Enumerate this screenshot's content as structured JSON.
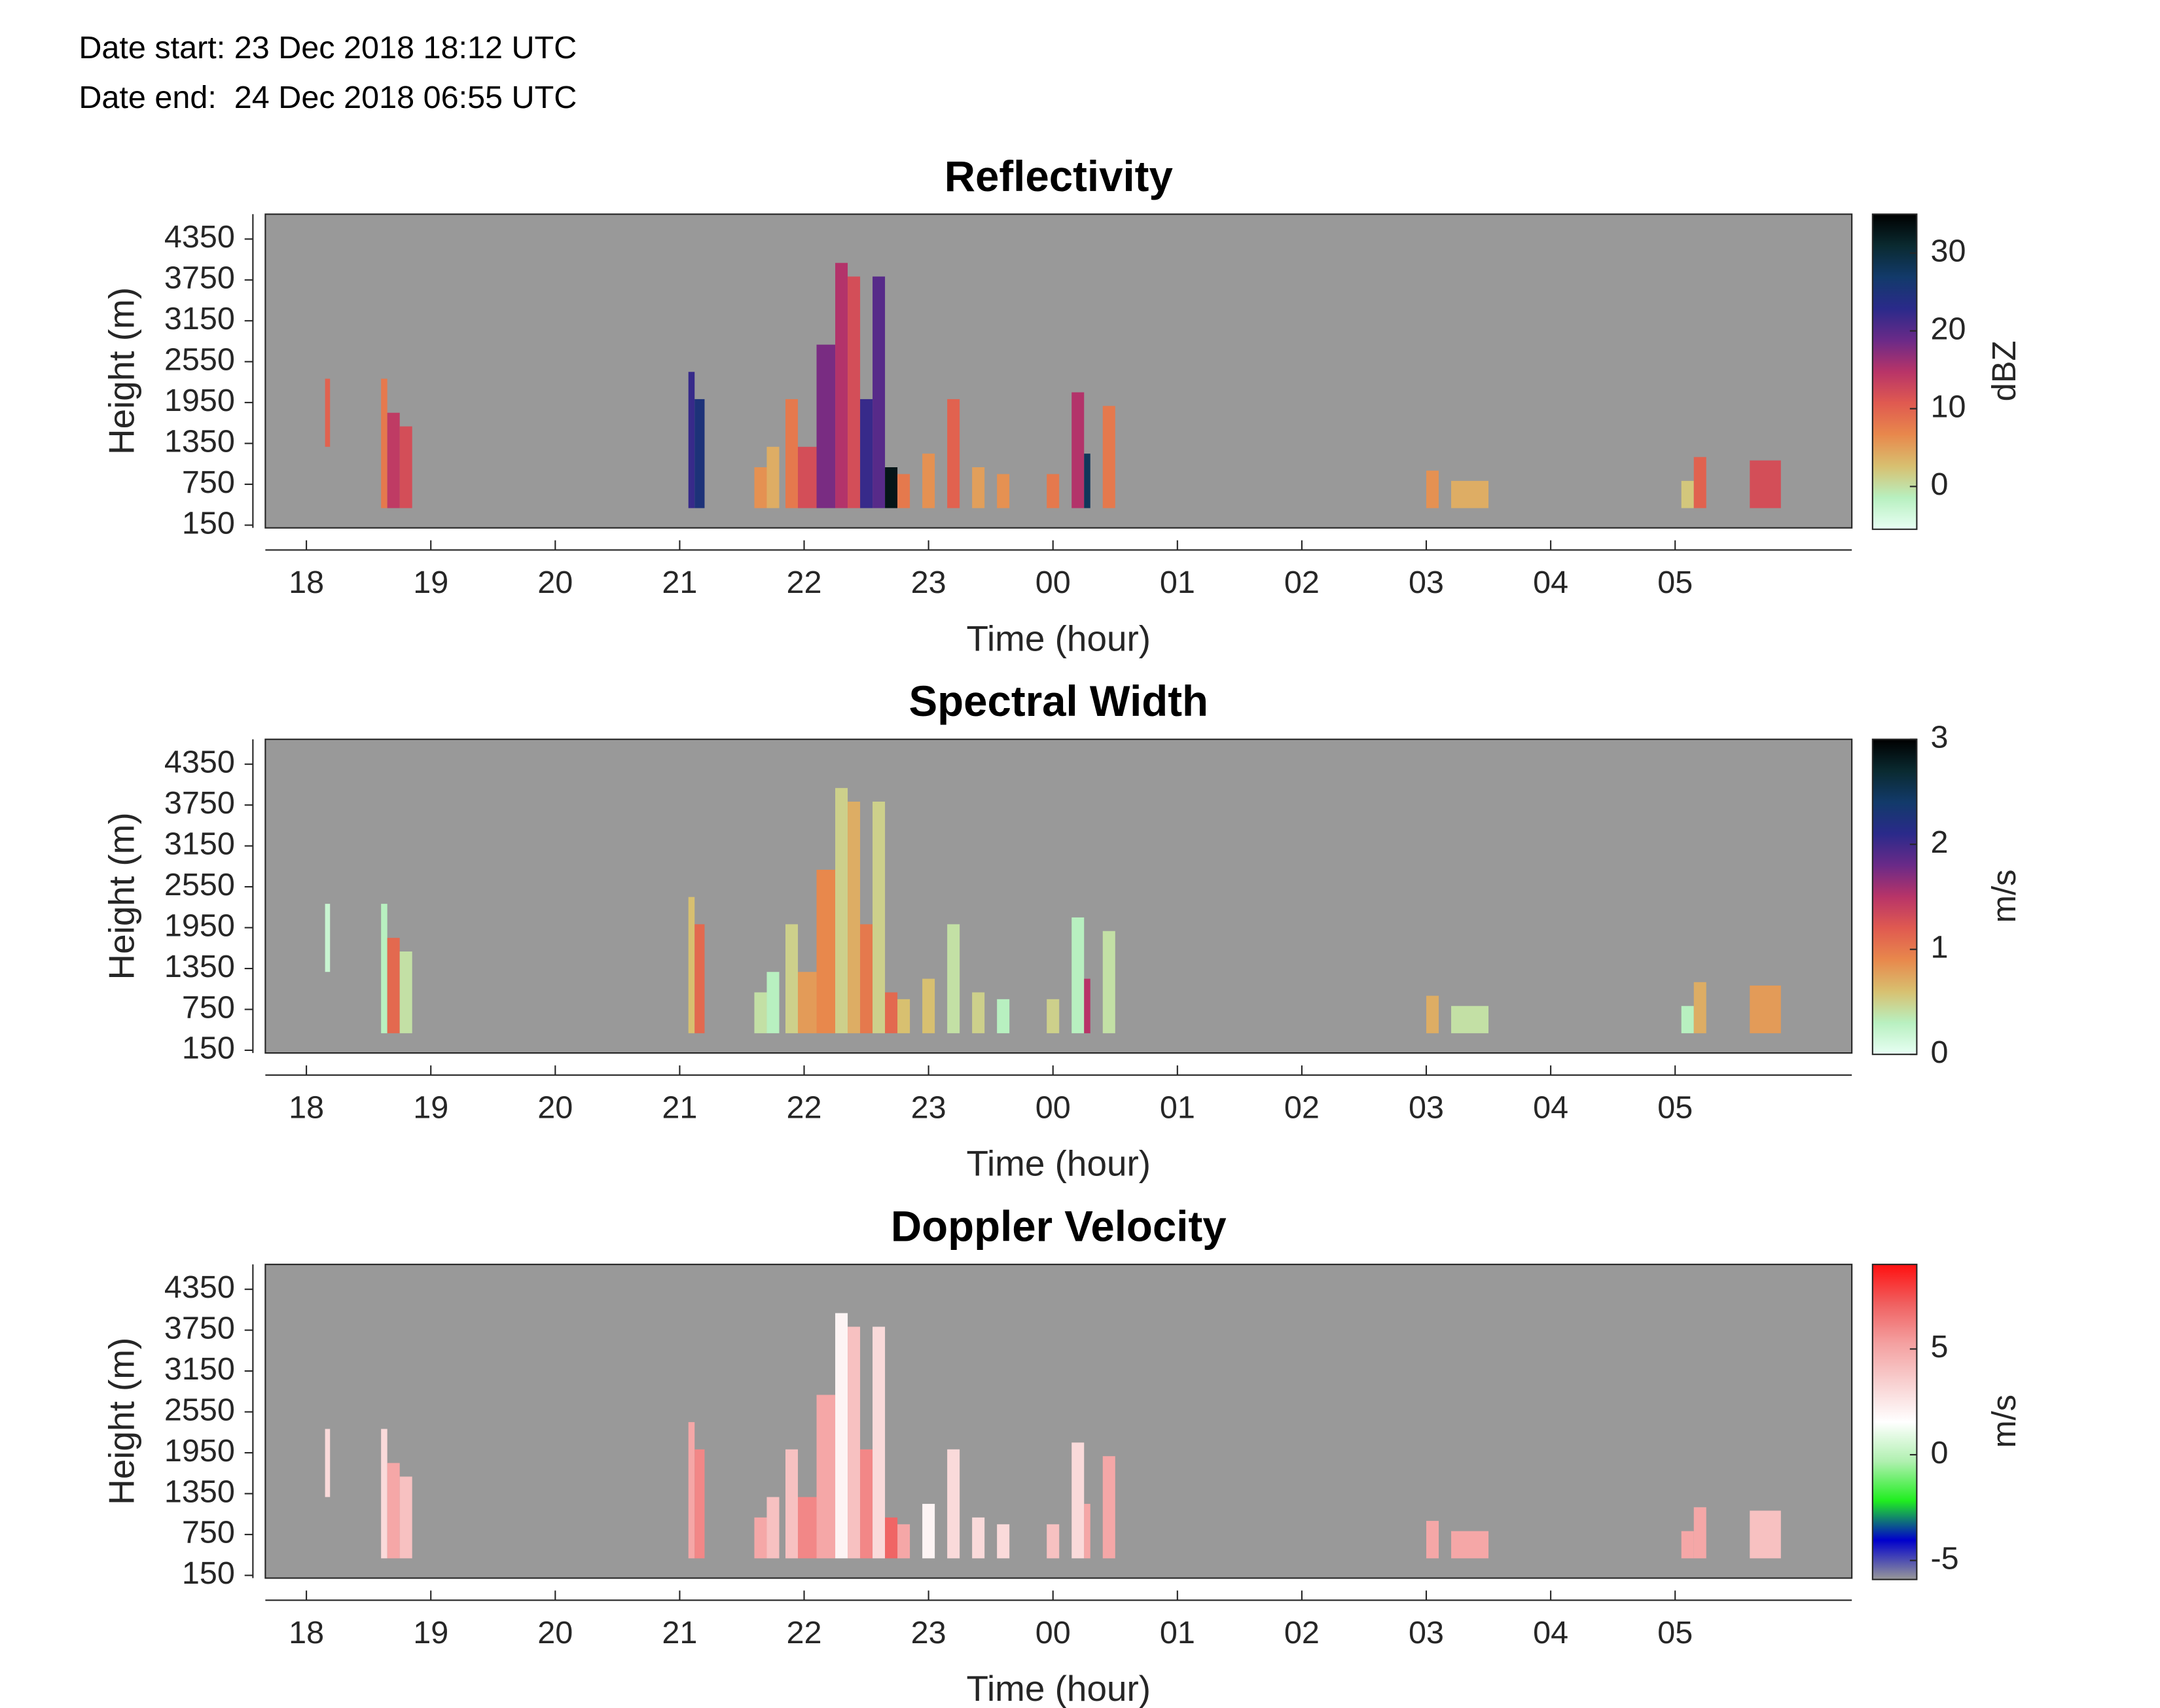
{
  "header": {
    "date_start": "Date start: 23 Dec 2018 18:12 UTC",
    "date_end": "Date end:  24 Dec 2018 06:55 UTC"
  },
  "chart_data": [
    {
      "type": "heatmap",
      "title": "Reflectivity",
      "xlabel": "Time (hour)",
      "ylabel": "Height (m)",
      "colorbar_label": "dBZ",
      "xlim": [
        17.67,
        30.42
      ],
      "xticks": [
        18,
        19,
        20,
        21,
        22,
        23,
        {
          "value": 24,
          "label": "00"
        },
        {
          "value": 25,
          "label": "01"
        },
        {
          "value": 26,
          "label": "02"
        },
        {
          "value": 27,
          "label": "03"
        },
        {
          "value": 28,
          "label": "04"
        },
        {
          "value": 29,
          "label": "05"
        }
      ],
      "ylim": [
        110,
        4715
      ],
      "yticks": [
        150,
        750,
        1350,
        1950,
        2550,
        3150,
        3750,
        4350
      ],
      "clim": [
        -5.5,
        35
      ],
      "cticks": [
        0,
        10,
        20,
        30
      ],
      "colormap": [
        "#e8fff4",
        "#b8f0c0",
        "#d8c070",
        "#e8884c",
        "#e05a50",
        "#b83468",
        "#6a2a88",
        "#2a2a8a",
        "#123a6a",
        "#0a2a30",
        "#000000"
      ],
      "background": "#999999",
      "cells": [
        [
          18.15,
          18.19,
          1300,
          2300,
          10
        ],
        [
          18.6,
          18.65,
          400,
          2300,
          8
        ],
        [
          18.65,
          18.75,
          400,
          1800,
          14
        ],
        [
          18.75,
          18.85,
          400,
          1600,
          12
        ],
        [
          21.07,
          21.12,
          400,
          2400,
          22
        ],
        [
          21.12,
          21.2,
          400,
          2000,
          25
        ],
        [
          21.6,
          21.7,
          400,
          1000,
          6
        ],
        [
          21.7,
          21.8,
          400,
          1300,
          4
        ],
        [
          21.85,
          21.95,
          400,
          2000,
          8
        ],
        [
          21.95,
          22.1,
          400,
          1300,
          12
        ],
        [
          22.1,
          22.25,
          400,
          2800,
          18
        ],
        [
          22.25,
          22.35,
          400,
          4000,
          15
        ],
        [
          22.35,
          22.45,
          400,
          3800,
          12
        ],
        [
          22.45,
          22.55,
          400,
          2000,
          22
        ],
        [
          22.55,
          22.65,
          400,
          3800,
          20
        ],
        [
          22.65,
          22.75,
          400,
          1000,
          33
        ],
        [
          22.75,
          22.85,
          400,
          900,
          8
        ],
        [
          22.95,
          23.05,
          400,
          1200,
          6
        ],
        [
          23.15,
          23.25,
          400,
          2000,
          10
        ],
        [
          23.35,
          23.45,
          400,
          1000,
          5
        ],
        [
          23.55,
          23.65,
          400,
          900,
          6
        ],
        [
          23.95,
          24.05,
          400,
          900,
          8
        ],
        [
          24.15,
          24.25,
          400,
          2100,
          15
        ],
        [
          24.25,
          24.3,
          400,
          1200,
          28
        ],
        [
          24.4,
          24.5,
          400,
          1900,
          8
        ],
        [
          27.0,
          27.1,
          400,
          950,
          6
        ],
        [
          27.2,
          27.5,
          400,
          800,
          4
        ],
        [
          29.05,
          29.15,
          400,
          800,
          2
        ],
        [
          29.15,
          29.25,
          400,
          1150,
          10
        ],
        [
          29.6,
          29.85,
          400,
          1100,
          12
        ]
      ]
    },
    {
      "type": "heatmap",
      "title": "Spectral Width",
      "xlabel": "Time (hour)",
      "ylabel": "Height (m)",
      "colorbar_label": "m/s",
      "xlim": [
        17.67,
        30.42
      ],
      "xticks": [
        18,
        19,
        20,
        21,
        22,
        23,
        {
          "value": 24,
          "label": "00"
        },
        {
          "value": 25,
          "label": "01"
        },
        {
          "value": 26,
          "label": "02"
        },
        {
          "value": 27,
          "label": "03"
        },
        {
          "value": 28,
          "label": "04"
        },
        {
          "value": 29,
          "label": "05"
        }
      ],
      "ylim": [
        110,
        4715
      ],
      "yticks": [
        150,
        750,
        1350,
        1950,
        2550,
        3150,
        3750,
        4350
      ],
      "clim": [
        0,
        3
      ],
      "cticks": [
        0,
        1,
        2,
        3
      ],
      "colormap": [
        "#e8fff4",
        "#b8f0c0",
        "#d8c070",
        "#e8884c",
        "#e05a50",
        "#b83468",
        "#6a2a88",
        "#2a2a8a",
        "#123a6a",
        "#0a2a30",
        "#000000"
      ],
      "background": "#999999",
      "cells": [
        [
          18.15,
          18.19,
          1300,
          2300,
          0.2
        ],
        [
          18.6,
          18.65,
          400,
          2300,
          0.3
        ],
        [
          18.65,
          18.75,
          400,
          1800,
          1.1
        ],
        [
          18.75,
          18.85,
          400,
          1600,
          0.4
        ],
        [
          21.07,
          21.12,
          400,
          2400,
          0.6
        ],
        [
          21.12,
          21.2,
          400,
          2000,
          1.1
        ],
        [
          21.6,
          21.7,
          400,
          1000,
          0.4
        ],
        [
          21.7,
          21.8,
          400,
          1300,
          0.3
        ],
        [
          21.85,
          21.95,
          400,
          2000,
          0.5
        ],
        [
          21.95,
          22.1,
          400,
          1300,
          0.8
        ],
        [
          22.1,
          22.25,
          400,
          2800,
          0.9
        ],
        [
          22.25,
          22.35,
          400,
          4000,
          0.5
        ],
        [
          22.35,
          22.45,
          400,
          3800,
          0.7
        ],
        [
          22.45,
          22.55,
          400,
          2000,
          1.0
        ],
        [
          22.55,
          22.65,
          400,
          3800,
          0.5
        ],
        [
          22.65,
          22.75,
          400,
          1000,
          1.1
        ],
        [
          22.75,
          22.85,
          400,
          900,
          0.6
        ],
        [
          22.95,
          23.05,
          400,
          1200,
          0.6
        ],
        [
          23.15,
          23.25,
          400,
          2000,
          0.4
        ],
        [
          23.35,
          23.45,
          400,
          1000,
          0.5
        ],
        [
          23.55,
          23.65,
          400,
          900,
          0.3
        ],
        [
          23.95,
          24.05,
          400,
          900,
          0.5
        ],
        [
          24.15,
          24.25,
          400,
          2100,
          0.3
        ],
        [
          24.25,
          24.3,
          400,
          1200,
          1.5
        ],
        [
          24.4,
          24.5,
          400,
          1900,
          0.4
        ],
        [
          27.0,
          27.1,
          400,
          950,
          0.7
        ],
        [
          27.2,
          27.5,
          400,
          800,
          0.4
        ],
        [
          29.05,
          29.15,
          400,
          800,
          0.3
        ],
        [
          29.15,
          29.25,
          400,
          1150,
          0.7
        ],
        [
          29.6,
          29.85,
          400,
          1100,
          0.8
        ]
      ]
    },
    {
      "type": "heatmap",
      "title": "Doppler Velocity",
      "xlabel": "Time (hour)",
      "ylabel": "Height (m)",
      "colorbar_label": "m/s",
      "xlim": [
        17.67,
        30.42
      ],
      "xticks": [
        18,
        19,
        20,
        21,
        22,
        23,
        {
          "value": 24,
          "label": "00"
        },
        {
          "value": 25,
          "label": "01"
        },
        {
          "value": 26,
          "label": "02"
        },
        {
          "value": 27,
          "label": "03"
        },
        {
          "value": 28,
          "label": "04"
        },
        {
          "value": 29,
          "label": "05"
        }
      ],
      "ylim": [
        110,
        4715
      ],
      "yticks": [
        150,
        750,
        1350,
        1950,
        2550,
        3150,
        3750,
        4350
      ],
      "clim": [
        -5.9,
        9
      ],
      "cticks": [
        -5,
        0,
        5
      ],
      "colormap": [
        "#999999",
        "#0000cc",
        "#20ee20",
        "#b0f0b0",
        "#ffffff",
        "#f8d0d0",
        "#f4a0a0",
        "#f06060",
        "#ff1010"
      ],
      "background": "#999999",
      "cells": [
        [
          18.15,
          18.19,
          1300,
          2300,
          3
        ],
        [
          18.6,
          18.65,
          400,
          2300,
          3
        ],
        [
          18.65,
          18.75,
          400,
          1800,
          5
        ],
        [
          18.75,
          18.85,
          400,
          1600,
          4
        ],
        [
          21.07,
          21.12,
          400,
          2400,
          5
        ],
        [
          21.12,
          21.2,
          400,
          2000,
          6
        ],
        [
          21.6,
          21.7,
          400,
          1000,
          5
        ],
        [
          21.7,
          21.8,
          400,
          1300,
          4
        ],
        [
          21.85,
          21.95,
          400,
          2000,
          4
        ],
        [
          21.95,
          22.1,
          400,
          1300,
          6
        ],
        [
          22.1,
          22.25,
          400,
          2800,
          5
        ],
        [
          22.25,
          22.35,
          400,
          4000,
          2
        ],
        [
          22.35,
          22.45,
          400,
          3800,
          4
        ],
        [
          22.45,
          22.55,
          400,
          2000,
          6
        ],
        [
          22.55,
          22.65,
          400,
          3800,
          3
        ],
        [
          22.65,
          22.75,
          400,
          1000,
          7
        ],
        [
          22.75,
          22.85,
          400,
          900,
          5
        ],
        [
          22.95,
          23.05,
          400,
          1200,
          2
        ],
        [
          23.15,
          23.25,
          400,
          2000,
          3
        ],
        [
          23.35,
          23.45,
          400,
          1000,
          3
        ],
        [
          23.55,
          23.65,
          400,
          900,
          3
        ],
        [
          23.95,
          24.05,
          400,
          900,
          4
        ],
        [
          24.15,
          24.25,
          400,
          2100,
          3
        ],
        [
          24.25,
          24.3,
          400,
          1200,
          5
        ],
        [
          24.4,
          24.5,
          400,
          1900,
          5
        ],
        [
          27.0,
          27.1,
          400,
          950,
          5
        ],
        [
          27.2,
          27.5,
          400,
          800,
          5
        ],
        [
          29.05,
          29.15,
          400,
          800,
          5
        ],
        [
          29.15,
          29.25,
          400,
          1150,
          5
        ],
        [
          29.6,
          29.85,
          400,
          1100,
          4
        ]
      ]
    }
  ]
}
